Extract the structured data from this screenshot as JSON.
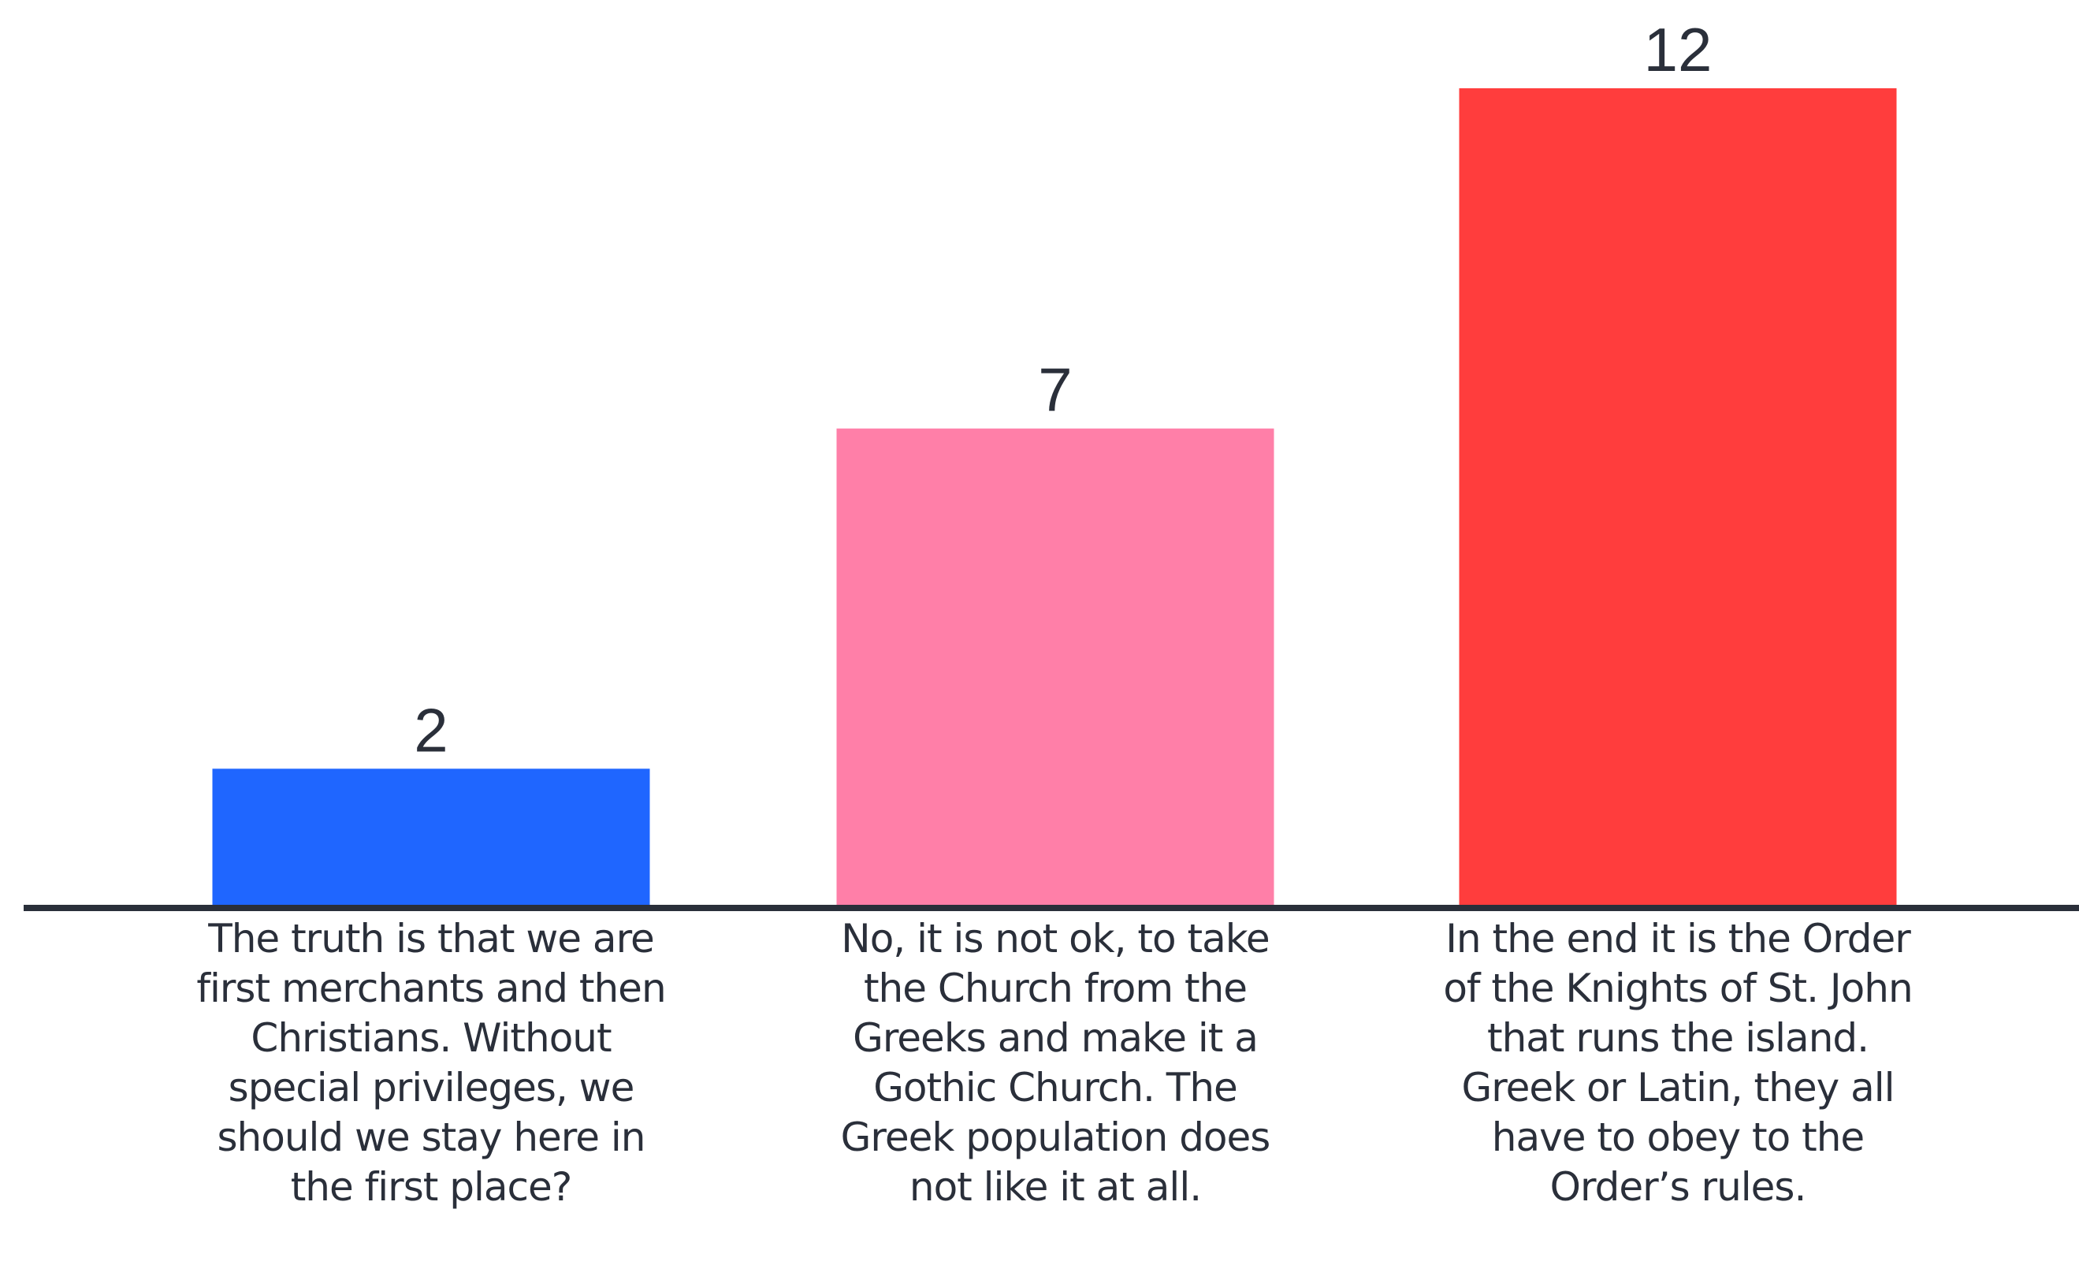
{
  "chart_data": {
    "type": "bar",
    "categories": [
      "The truth is that we are first merchants and then Christians. Without special privileges, we should we stay here in the first place?",
      "No, it is not ok, to take the Church from the Greeks and make it a Gothic Church. The Greek population does not like it at all.",
      "In the end it is the Order of the Knights of St. John that runs the island. Greek or Latin, they all have to obey to the Order’s rules."
    ],
    "values": [
      2,
      7,
      12
    ],
    "value_labels": [
      "2",
      "7",
      "12"
    ],
    "colors": [
      "#1f66ff",
      "#ff7fa8",
      "#ff3d3d"
    ],
    "title": "",
    "xlabel": "",
    "ylabel": "",
    "ylim": [
      0,
      12
    ],
    "grid": false,
    "legend": "none"
  }
}
